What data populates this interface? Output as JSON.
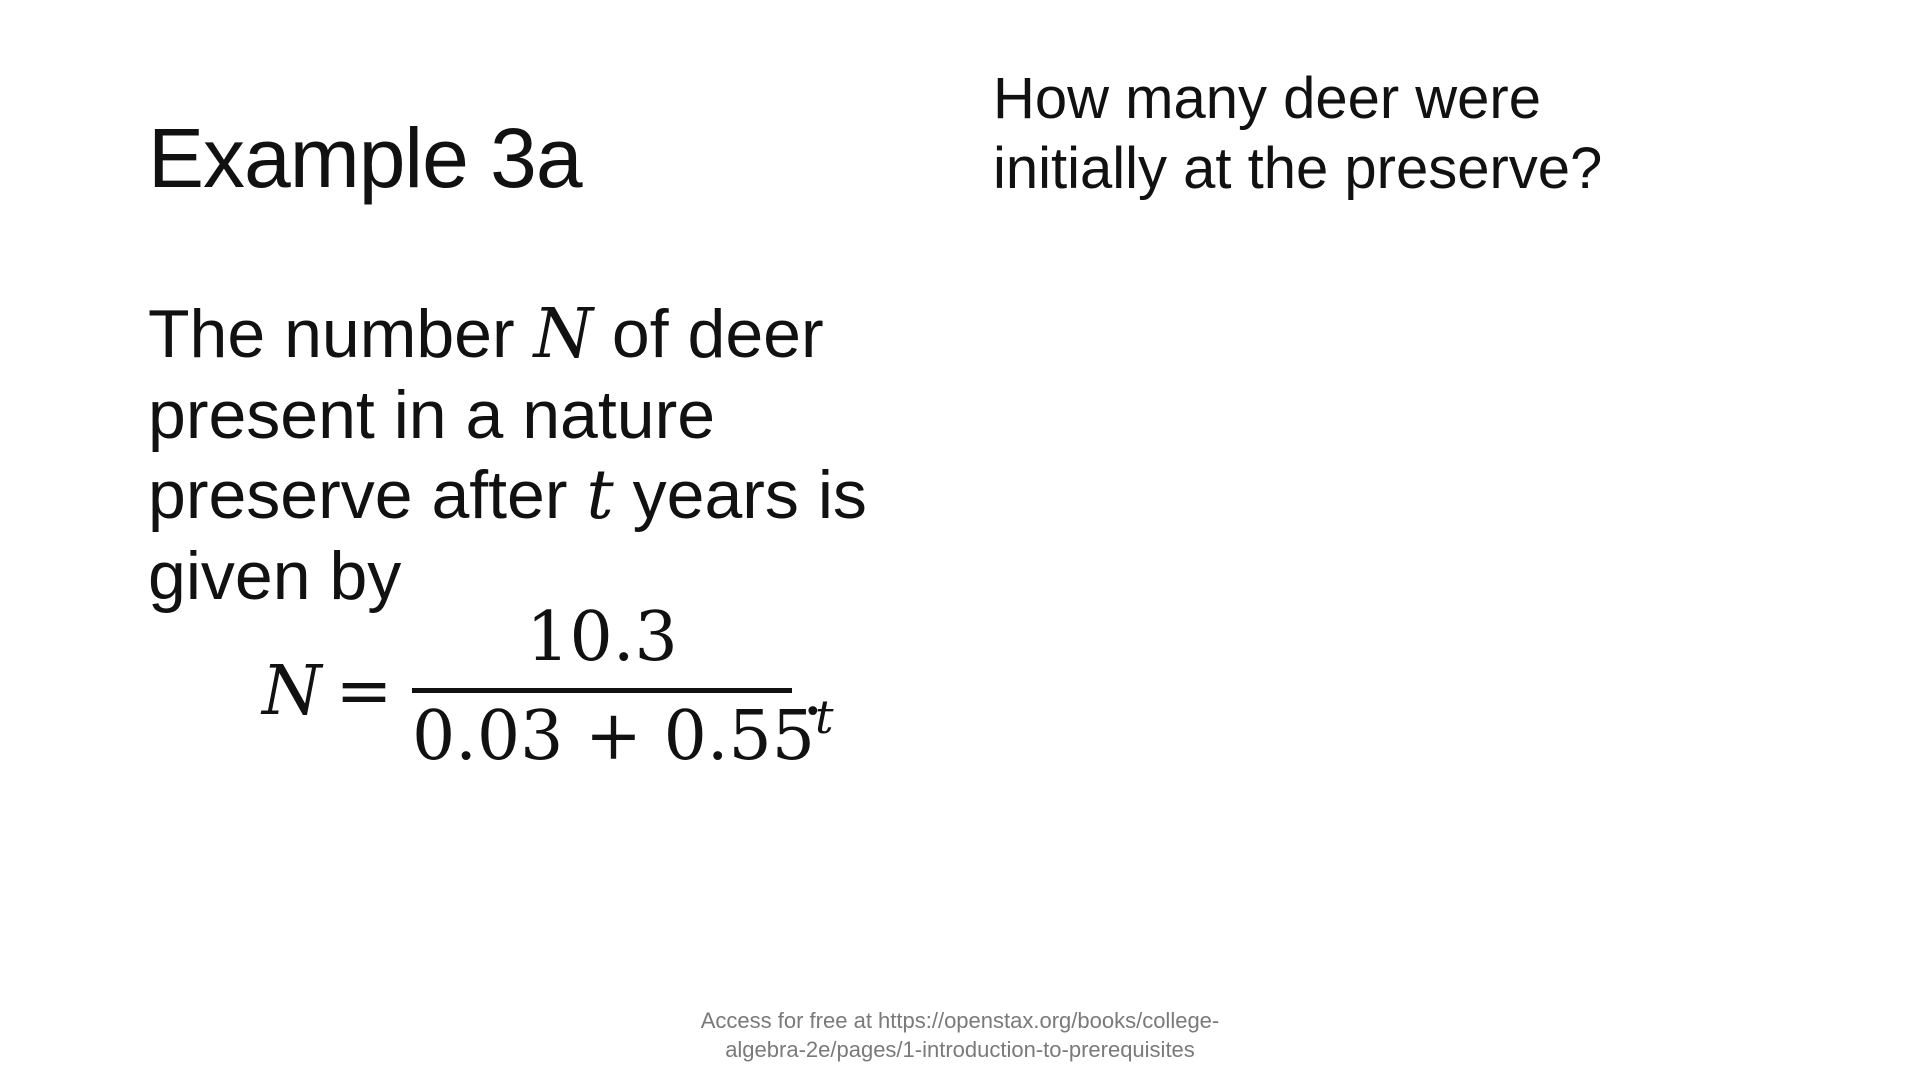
{
  "slide": {
    "title": "Example 3a",
    "question_lines": [
      "How many deer were",
      "initially at the preserve?"
    ],
    "body": {
      "line1_before": "The number ",
      "line1_var": "N",
      "line1_after": " of deer",
      "line2": "present in a nature",
      "line3_before": "preserve after ",
      "line3_var": "t",
      "line3_after": " years is",
      "line4": "given by"
    },
    "formula": {
      "lhs_var": "N",
      "equals": "=",
      "numerator": "10.3",
      "denominator_base": "0.03 + 0.55",
      "denominator_exponent": "t",
      "trailing": "."
    },
    "footer_lines": [
      "Access for free at https://openstax.org/books/college-",
      "algebra-2e/pages/1-introduction-to-prerequisites"
    ]
  }
}
